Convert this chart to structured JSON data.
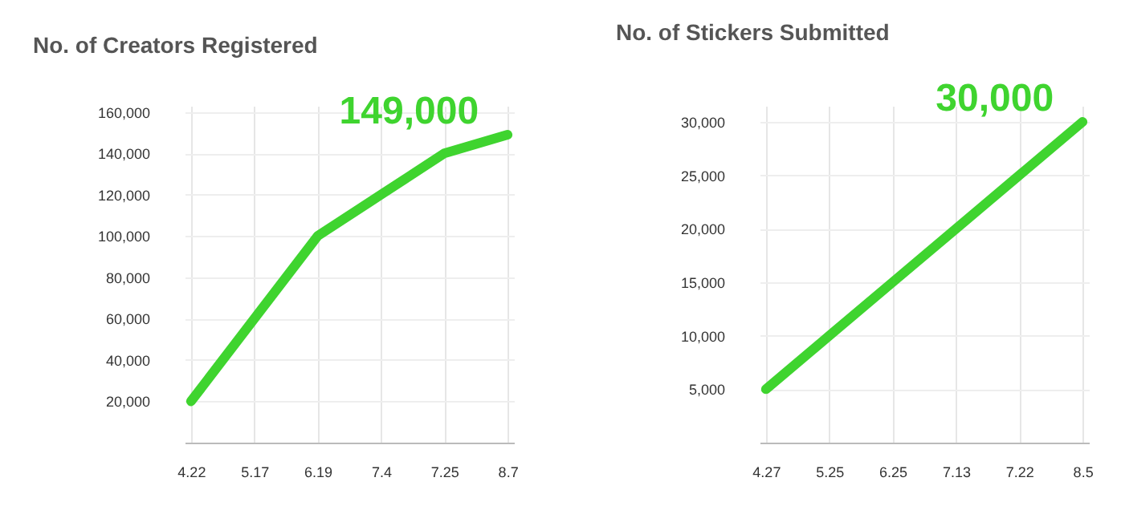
{
  "chart_data": [
    {
      "type": "line",
      "title": "No. of Creators Registered",
      "categories": [
        "4.22",
        "5.17",
        "6.19",
        "7.4",
        "7.25",
        "8.7"
      ],
      "series": [
        {
          "color": "#3fd42f",
          "values": [
            20000,
            60000,
            100000,
            120000,
            140000,
            149000
          ]
        }
      ],
      "ylim": [
        0,
        163000
      ],
      "yticks": [
        {
          "value": 20000,
          "label": "20,000"
        },
        {
          "value": 40000,
          "label": "40,000"
        },
        {
          "value": 60000,
          "label": "60,000"
        },
        {
          "value": 80000,
          "label": "80,000"
        },
        {
          "value": 100000,
          "label": "100,000"
        },
        {
          "value": 120000,
          "label": "120,000"
        },
        {
          "value": 140000,
          "label": "140,000"
        },
        {
          "value": 160000,
          "label": "160,000"
        }
      ],
      "grid": true,
      "annotations": [
        {
          "text": "149,000",
          "x": "8.7",
          "y": 149000
        }
      ]
    },
    {
      "type": "line",
      "title": "No. of Stickers Submitted",
      "categories": [
        "4.27",
        "5.25",
        "6.25",
        "7.13",
        "7.22",
        "8.5"
      ],
      "series": [
        {
          "color": "#3fd42f",
          "values": [
            5000,
            10000,
            15000,
            20000,
            25000,
            30000
          ]
        }
      ],
      "ylim": [
        0,
        31500
      ],
      "yticks": [
        {
          "value": 5000,
          "label": "5,000"
        },
        {
          "value": 10000,
          "label": "10,000"
        },
        {
          "value": 15000,
          "label": "15,000"
        },
        {
          "value": 20000,
          "label": "20,000"
        },
        {
          "value": 25000,
          "label": "25,000"
        },
        {
          "value": 30000,
          "label": "30,000"
        }
      ],
      "grid": true,
      "annotations": [
        {
          "text": "30,000",
          "x": "8.5",
          "y": 30000
        }
      ]
    }
  ]
}
